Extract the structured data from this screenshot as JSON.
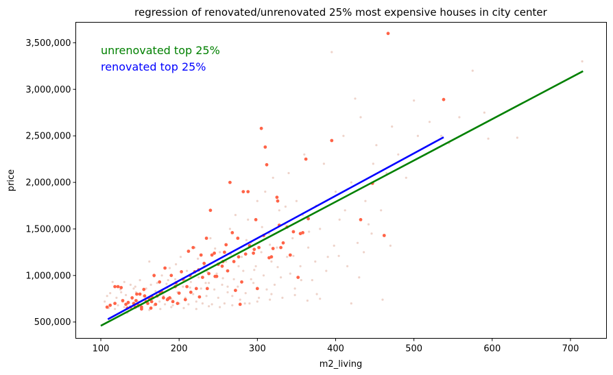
{
  "chart_data": {
    "type": "scatter",
    "title": "regression of renovated/unrenovated 25% most expensive houses in city center",
    "xlabel": "m2_living",
    "ylabel": "price",
    "xlim": [
      68,
      746
    ],
    "ylim": [
      325000,
      3720000
    ],
    "xticks": [
      100,
      200,
      300,
      400,
      500,
      600,
      700
    ],
    "xtick_labels": [
      "100",
      "200",
      "300",
      "400",
      "500",
      "600",
      "700"
    ],
    "yticks": [
      500000,
      1000000,
      1500000,
      2000000,
      2500000,
      3000000,
      3500000
    ],
    "ytick_labels": [
      "500,000",
      "1,000,000",
      "1,500,000",
      "2,000,000",
      "2,500,000",
      "3,000,000",
      "3,500,000"
    ],
    "grid": false,
    "legend_text": [
      {
        "text": "unrenovated top 25%",
        "color": "#008000"
      },
      {
        "text": "renovated top 25%",
        "color": "#0000ff"
      }
    ],
    "scatter_colors": {
      "unrenovated": "#e8c4b8",
      "renovated": "#ff6347"
    },
    "unrenovated_points": [
      [
        105,
        720000
      ],
      [
        110,
        650000
      ],
      [
        112,
        810000
      ],
      [
        115,
        930000
      ],
      [
        118,
        700000
      ],
      [
        120,
        760000
      ],
      [
        122,
        680000
      ],
      [
        125,
        850000
      ],
      [
        128,
        720000
      ],
      [
        130,
        660000
      ],
      [
        132,
        790000
      ],
      [
        135,
        700000
      ],
      [
        138,
        900000
      ],
      [
        140,
        750000
      ],
      [
        142,
        680000
      ],
      [
        145,
        820000
      ],
      [
        148,
        720000
      ],
      [
        150,
        950000
      ],
      [
        152,
        690000
      ],
      [
        155,
        780000
      ],
      [
        158,
        860000
      ],
      [
        160,
        700000
      ],
      [
        162,
        1150000
      ],
      [
        165,
        760000
      ],
      [
        168,
        680000
      ],
      [
        170,
        830000
      ],
      [
        172,
        920000
      ],
      [
        175,
        720000
      ],
      [
        178,
        1000000
      ],
      [
        180,
        780000
      ],
      [
        182,
        690000
      ],
      [
        185,
        870000
      ],
      [
        188,
        1080000
      ],
      [
        190,
        750000
      ],
      [
        192,
        680000
      ],
      [
        195,
        960000
      ],
      [
        198,
        820000
      ],
      [
        200,
        700000
      ],
      [
        202,
        1200000
      ],
      [
        205,
        880000
      ],
      [
        208,
        760000
      ],
      [
        210,
        1050000
      ],
      [
        212,
        690000
      ],
      [
        215,
        930000
      ],
      [
        218,
        800000
      ],
      [
        220,
        1300000
      ],
      [
        222,
        720000
      ],
      [
        225,
        980000
      ],
      [
        228,
        860000
      ],
      [
        230,
        700000
      ],
      [
        232,
        1100000
      ],
      [
        235,
        780000
      ],
      [
        238,
        920000
      ],
      [
        240,
        1400000
      ],
      [
        242,
        690000
      ],
      [
        245,
        850000
      ],
      [
        248,
        1020000
      ],
      [
        250,
        760000
      ],
      [
        252,
        1250000
      ],
      [
        255,
        900000
      ],
      [
        258,
        700000
      ],
      [
        260,
        1150000
      ],
      [
        262,
        820000
      ],
      [
        265,
        1500000
      ],
      [
        268,
        780000
      ],
      [
        270,
        960000
      ],
      [
        272,
        1650000
      ],
      [
        275,
        880000
      ],
      [
        278,
        740000
      ],
      [
        280,
        1200000
      ],
      [
        282,
        1050000
      ],
      [
        285,
        810000
      ],
      [
        288,
        1600000
      ],
      [
        290,
        700000
      ],
      [
        292,
        1350000
      ],
      [
        295,
        920000
      ],
      [
        298,
        1100000
      ],
      [
        300,
        1800000
      ],
      [
        302,
        760000
      ],
      [
        305,
        1250000
      ],
      [
        308,
        1000000
      ],
      [
        310,
        1900000
      ],
      [
        312,
        850000
      ],
      [
        315,
        1450000
      ],
      [
        318,
        1150000
      ],
      [
        320,
        2050000
      ],
      [
        322,
        900000
      ],
      [
        325,
        1300000
      ],
      [
        328,
        1700000
      ],
      [
        330,
        980000
      ],
      [
        335,
        1550000
      ],
      [
        338,
        1200000
      ],
      [
        340,
        2100000
      ],
      [
        345,
        1400000
      ],
      [
        348,
        860000
      ],
      [
        350,
        1800000
      ],
      [
        355,
        1100000
      ],
      [
        358,
        1650000
      ],
      [
        360,
        2300000
      ],
      [
        365,
        1300000
      ],
      [
        370,
        950000
      ],
      [
        375,
        1750000
      ],
      [
        380,
        1500000
      ],
      [
        385,
        2200000
      ],
      [
        390,
        1200000
      ],
      [
        395,
        3400000
      ],
      [
        400,
        1900000
      ],
      [
        405,
        1600000
      ],
      [
        410,
        2500000
      ],
      [
        415,
        1100000
      ],
      [
        420,
        2000000
      ],
      [
        425,
        2900000
      ],
      [
        428,
        1350000
      ],
      [
        432,
        2700000
      ],
      [
        438,
        1800000
      ],
      [
        442,
        1550000
      ],
      [
        448,
        2200000
      ],
      [
        452,
        2400000
      ],
      [
        458,
        1700000
      ],
      [
        465,
        2100000
      ],
      [
        472,
        2600000
      ],
      [
        480,
        2300000
      ],
      [
        490,
        2050000
      ],
      [
        500,
        2880000
      ],
      [
        505,
        2500000
      ],
      [
        515,
        2300000
      ],
      [
        520,
        2650000
      ],
      [
        535,
        2500000
      ],
      [
        545,
        2420000
      ],
      [
        558,
        2700000
      ],
      [
        575,
        3200000
      ],
      [
        590,
        2750000
      ],
      [
        595,
        2470000
      ],
      [
        632,
        2480000
      ],
      [
        715,
        3300000
      ],
      [
        130,
        930000
      ],
      [
        142,
        860000
      ],
      [
        156,
        740000
      ],
      [
        168,
        990000
      ],
      [
        184,
        910000
      ],
      [
        196,
        1120000
      ],
      [
        208,
        950000
      ],
      [
        224,
        1180000
      ],
      [
        236,
        1040000
      ],
      [
        246,
        1290000
      ],
      [
        256,
        970000
      ],
      [
        266,
        1230000
      ],
      [
        276,
        1100000
      ],
      [
        286,
        1380000
      ],
      [
        296,
        1060000
      ],
      [
        306,
        1520000
      ],
      [
        316,
        1330000
      ],
      [
        326,
        1090000
      ],
      [
        336,
        1740000
      ],
      [
        346,
        1210000
      ],
      [
        356,
        950000
      ],
      [
        366,
        1470000
      ],
      [
        376,
        800000
      ],
      [
        388,
        1050000
      ],
      [
        398,
        1320000
      ],
      [
        412,
        1700000
      ],
      [
        430,
        980000
      ],
      [
        446,
        1450000
      ],
      [
        118,
        640000
      ],
      [
        134,
        600000
      ],
      [
        148,
        660000
      ],
      [
        162,
        630000
      ],
      [
        176,
        640000
      ],
      [
        190,
        660000
      ],
      [
        206,
        650000
      ],
      [
        222,
        640000
      ],
      [
        238,
        670000
      ],
      [
        252,
        660000
      ],
      [
        268,
        680000
      ],
      [
        284,
        700000
      ],
      [
        300,
        720000
      ],
      [
        316,
        740000
      ],
      [
        332,
        760000
      ],
      [
        348,
        790000
      ],
      [
        364,
        730000
      ],
      [
        380,
        750000
      ],
      [
        420,
        700000
      ],
      [
        460,
        740000
      ],
      [
        108,
        780000
      ],
      [
        126,
        820000
      ],
      [
        144,
        880000
      ],
      [
        164,
        900000
      ],
      [
        186,
        950000
      ],
      [
        214,
        870000
      ],
      [
        234,
        920000
      ],
      [
        262,
        880000
      ],
      [
        292,
        960000
      ],
      [
        318,
        800000
      ],
      [
        342,
        1020000
      ],
      [
        374,
        1150000
      ],
      [
        404,
        1210000
      ],
      [
        436,
        1250000
      ],
      [
        470,
        1320000
      ]
    ],
    "renovated_points": [
      [
        108,
        660000
      ],
      [
        112,
        680000
      ],
      [
        118,
        700000
      ],
      [
        122,
        880000
      ],
      [
        126,
        870000
      ],
      [
        128,
        730000
      ],
      [
        132,
        690000
      ],
      [
        135,
        710000
      ],
      [
        138,
        660000
      ],
      [
        140,
        760000
      ],
      [
        142,
        700000
      ],
      [
        145,
        730000
      ],
      [
        148,
        680000
      ],
      [
        150,
        800000
      ],
      [
        152,
        660000
      ],
      [
        155,
        850000
      ],
      [
        158,
        720000
      ],
      [
        160,
        700000
      ],
      [
        162,
        750000
      ],
      [
        165,
        720000
      ],
      [
        168,
        1000000
      ],
      [
        170,
        690000
      ],
      [
        172,
        780000
      ],
      [
        175,
        930000
      ],
      [
        178,
        820000
      ],
      [
        180,
        760000
      ],
      [
        182,
        1080000
      ],
      [
        185,
        740000
      ],
      [
        188,
        760000
      ],
      [
        190,
        1000000
      ],
      [
        192,
        720000
      ],
      [
        195,
        880000
      ],
      [
        198,
        700000
      ],
      [
        200,
        810000
      ],
      [
        203,
        1040000
      ],
      [
        205,
        960000
      ],
      [
        208,
        740000
      ],
      [
        210,
        880000
      ],
      [
        212,
        1260000
      ],
      [
        215,
        820000
      ],
      [
        218,
        1300000
      ],
      [
        220,
        1040000
      ],
      [
        222,
        860000
      ],
      [
        225,
        1060000
      ],
      [
        228,
        1220000
      ],
      [
        230,
        980000
      ],
      [
        232,
        1130000
      ],
      [
        235,
        1400000
      ],
      [
        238,
        1020000
      ],
      [
        240,
        1700000
      ],
      [
        242,
        1220000
      ],
      [
        245,
        1240000
      ],
      [
        248,
        990000
      ],
      [
        250,
        1120000
      ],
      [
        255,
        1100000
      ],
      [
        258,
        1250000
      ],
      [
        260,
        1330000
      ],
      [
        262,
        1050000
      ],
      [
        265,
        2000000
      ],
      [
        268,
        1460000
      ],
      [
        270,
        1150000
      ],
      [
        272,
        840000
      ],
      [
        275,
        1400000
      ],
      [
        278,
        690000
      ],
      [
        280,
        930000
      ],
      [
        282,
        1900000
      ],
      [
        285,
        1230000
      ],
      [
        288,
        1900000
      ],
      [
        290,
        1320000
      ],
      [
        295,
        1240000
      ],
      [
        298,
        1600000
      ],
      [
        300,
        860000
      ],
      [
        302,
        1300000
      ],
      [
        305,
        2580000
      ],
      [
        308,
        1430000
      ],
      [
        310,
        2380000
      ],
      [
        312,
        2190000
      ],
      [
        315,
        1190000
      ],
      [
        318,
        1200000
      ],
      [
        320,
        1290000
      ],
      [
        325,
        1840000
      ],
      [
        326,
        1800000
      ],
      [
        328,
        1540000
      ],
      [
        330,
        1300000
      ],
      [
        333,
        1350000
      ],
      [
        338,
        1520000
      ],
      [
        342,
        1220000
      ],
      [
        346,
        1470000
      ],
      [
        352,
        980000
      ],
      [
        355,
        1450000
      ],
      [
        358,
        1460000
      ],
      [
        362,
        2250000
      ],
      [
        365,
        1610000
      ],
      [
        395,
        2450000
      ],
      [
        432,
        1600000
      ],
      [
        447,
        1990000
      ],
      [
        462,
        1430000
      ],
      [
        467,
        3600000
      ],
      [
        538,
        2890000
      ],
      [
        118,
        880000
      ],
      [
        134,
        650000
      ],
      [
        146,
        800000
      ],
      [
        156,
        780000
      ],
      [
        166,
        760000
      ],
      [
        176,
        810000
      ],
      [
        186,
        750000
      ],
      [
        196,
        920000
      ],
      [
        214,
        1000000
      ],
      [
        226,
        770000
      ],
      [
        236,
        860000
      ],
      [
        246,
        990000
      ],
      [
        256,
        1150000
      ],
      [
        276,
        1200000
      ],
      [
        296,
        1280000
      ],
      [
        152,
        640000
      ],
      [
        164,
        650000
      ],
      [
        144,
        660000
      ]
    ],
    "lines": [
      {
        "label": "unrenovated top 25%",
        "color": "#008000",
        "x": [
          100,
          716
        ],
        "y": [
          460000,
          3195000
        ]
      },
      {
        "label": "renovated top 25%",
        "color": "#0000ff",
        "x": [
          109,
          538
        ],
        "y": [
          530000,
          2485000
        ]
      }
    ]
  }
}
